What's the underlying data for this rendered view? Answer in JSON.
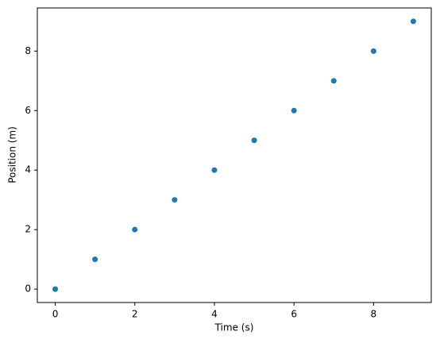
{
  "chart_data": {
    "type": "scatter",
    "x_label": "Time (s)",
    "y_label": "Position (m)",
    "x": [
      0,
      1,
      2,
      3,
      4,
      5,
      6,
      7,
      8,
      9
    ],
    "series": [
      {
        "color": "#1f77b4",
        "values": [
          0,
          1,
          2,
          3,
          4,
          5,
          6,
          7,
          8,
          9
        ]
      }
    ],
    "xlim": [
      -0.45,
      9.45
    ],
    "ylim": [
      -0.45,
      9.45
    ],
    "xticks": [
      0,
      2,
      4,
      6,
      8
    ],
    "yticks": [
      0,
      2,
      4,
      6,
      8
    ],
    "grid": false
  }
}
